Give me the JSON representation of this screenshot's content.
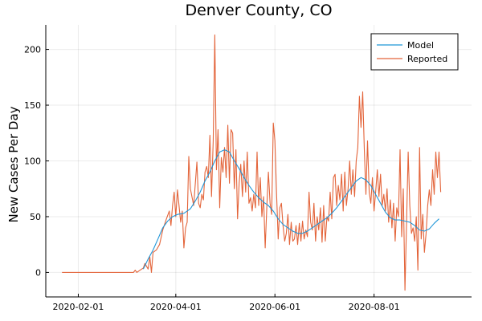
{
  "chart_data": {
    "type": "line",
    "title": "Denver County, CO",
    "xlabel": "",
    "ylabel": "New Cases Per Day",
    "x_ticks": [
      "2020-02-01",
      "2020-04-01",
      "2020-06-01",
      "2020-08-01"
    ],
    "y_ticks": [
      0,
      50,
      100,
      150,
      200
    ],
    "xlim": [
      "2020-01-12",
      "2020-09-30"
    ],
    "ylim": [
      -22,
      222
    ],
    "grid": true,
    "legend_position": "top-right",
    "colors": {
      "Model": "#1f96d8",
      "Reported": "#e3643a"
    },
    "series": [
      {
        "name": "Model",
        "points": [
          [
            "2020-03-12",
            3
          ],
          [
            "2020-03-15",
            12
          ],
          [
            "2020-03-18",
            20
          ],
          [
            "2020-03-21",
            30
          ],
          [
            "2020-03-24",
            40
          ],
          [
            "2020-03-27",
            46
          ],
          [
            "2020-03-30",
            50
          ],
          [
            "2020-04-02",
            52
          ],
          [
            "2020-04-06",
            53
          ],
          [
            "2020-04-10",
            57
          ],
          [
            "2020-04-13",
            64
          ],
          [
            "2020-04-16",
            72
          ],
          [
            "2020-04-19",
            82
          ],
          [
            "2020-04-22",
            90
          ],
          [
            "2020-04-25",
            100
          ],
          [
            "2020-04-28",
            108
          ],
          [
            "2020-05-01",
            110
          ],
          [
            "2020-05-04",
            108
          ],
          [
            "2020-05-07",
            100
          ],
          [
            "2020-05-10",
            93
          ],
          [
            "2020-05-13",
            85
          ],
          [
            "2020-05-16",
            78
          ],
          [
            "2020-05-19",
            72
          ],
          [
            "2020-05-22",
            67
          ],
          [
            "2020-05-25",
            63
          ],
          [
            "2020-05-28",
            60
          ],
          [
            "2020-05-31",
            55
          ],
          [
            "2020-06-03",
            48
          ],
          [
            "2020-06-06",
            43
          ],
          [
            "2020-06-09",
            40
          ],
          [
            "2020-06-12",
            37
          ],
          [
            "2020-06-15",
            35
          ],
          [
            "2020-06-18",
            35
          ],
          [
            "2020-06-21",
            37
          ],
          [
            "2020-06-24",
            40
          ],
          [
            "2020-06-27",
            43
          ],
          [
            "2020-06-30",
            46
          ],
          [
            "2020-07-03",
            49
          ],
          [
            "2020-07-06",
            53
          ],
          [
            "2020-07-09",
            58
          ],
          [
            "2020-07-12",
            64
          ],
          [
            "2020-07-15",
            70
          ],
          [
            "2020-07-18",
            76
          ],
          [
            "2020-07-21",
            82
          ],
          [
            "2020-07-24",
            85
          ],
          [
            "2020-07-27",
            83
          ],
          [
            "2020-07-30",
            78
          ],
          [
            "2020-08-02",
            70
          ],
          [
            "2020-08-05",
            62
          ],
          [
            "2020-08-08",
            54
          ],
          [
            "2020-08-11",
            49
          ],
          [
            "2020-08-14",
            47
          ],
          [
            "2020-08-17",
            47
          ],
          [
            "2020-08-20",
            46
          ],
          [
            "2020-08-23",
            45
          ],
          [
            "2020-08-26",
            42
          ],
          [
            "2020-08-29",
            38
          ],
          [
            "2020-09-01",
            37
          ],
          [
            "2020-09-04",
            39
          ],
          [
            "2020-09-07",
            44
          ],
          [
            "2020-09-10",
            48
          ]
        ]
      },
      {
        "name": "Reported",
        "points": [
          [
            "2020-01-22",
            0
          ],
          [
            "2020-03-06",
            0
          ],
          [
            "2020-03-07",
            2
          ],
          [
            "2020-03-08",
            0
          ],
          [
            "2020-03-10",
            2
          ],
          [
            "2020-03-12",
            4
          ],
          [
            "2020-03-13",
            8
          ],
          [
            "2020-03-15",
            3
          ],
          [
            "2020-03-16",
            14
          ],
          [
            "2020-03-17",
            0
          ],
          [
            "2020-03-18",
            18
          ],
          [
            "2020-03-20",
            20
          ],
          [
            "2020-03-22",
            25
          ],
          [
            "2020-03-24",
            38
          ],
          [
            "2020-03-26",
            47
          ],
          [
            "2020-03-28",
            55
          ],
          [
            "2020-03-29",
            42
          ],
          [
            "2020-03-30",
            60
          ],
          [
            "2020-03-31",
            72
          ],
          [
            "2020-04-01",
            50
          ],
          [
            "2020-04-02",
            74
          ],
          [
            "2020-04-04",
            45
          ],
          [
            "2020-04-05",
            55
          ],
          [
            "2020-04-06",
            22
          ],
          [
            "2020-04-07",
            40
          ],
          [
            "2020-04-08",
            45
          ],
          [
            "2020-04-09",
            104
          ],
          [
            "2020-04-10",
            75
          ],
          [
            "2020-04-12",
            60
          ],
          [
            "2020-04-14",
            99
          ],
          [
            "2020-04-15",
            62
          ],
          [
            "2020-04-16",
            58
          ],
          [
            "2020-04-17",
            70
          ],
          [
            "2020-04-18",
            65
          ],
          [
            "2020-04-19",
            90
          ],
          [
            "2020-04-20",
            95
          ],
          [
            "2020-04-21",
            85
          ],
          [
            "2020-04-22",
            123
          ],
          [
            "2020-04-23",
            68
          ],
          [
            "2020-04-24",
            118
          ],
          [
            "2020-04-25",
            213
          ],
          [
            "2020-04-26",
            92
          ],
          [
            "2020-04-27",
            128
          ],
          [
            "2020-04-28",
            58
          ],
          [
            "2020-04-29",
            103
          ],
          [
            "2020-04-30",
            90
          ],
          [
            "2020-05-01",
            112
          ],
          [
            "2020-05-02",
            85
          ],
          [
            "2020-05-03",
            132
          ],
          [
            "2020-05-04",
            80
          ],
          [
            "2020-05-05",
            128
          ],
          [
            "2020-05-06",
            125
          ],
          [
            "2020-05-07",
            75
          ],
          [
            "2020-05-08",
            110
          ],
          [
            "2020-05-09",
            48
          ],
          [
            "2020-05-10",
            80
          ],
          [
            "2020-05-11",
            97
          ],
          [
            "2020-05-12",
            68
          ],
          [
            "2020-05-13",
            100
          ],
          [
            "2020-05-14",
            72
          ],
          [
            "2020-05-15",
            108
          ],
          [
            "2020-05-16",
            62
          ],
          [
            "2020-05-17",
            67
          ],
          [
            "2020-05-18",
            55
          ],
          [
            "2020-05-19",
            70
          ],
          [
            "2020-05-20",
            58
          ],
          [
            "2020-05-21",
            108
          ],
          [
            "2020-05-22",
            60
          ],
          [
            "2020-05-23",
            85
          ],
          [
            "2020-05-24",
            50
          ],
          [
            "2020-05-25",
            68
          ],
          [
            "2020-05-26",
            22
          ],
          [
            "2020-05-27",
            58
          ],
          [
            "2020-05-28",
            90
          ],
          [
            "2020-05-29",
            62
          ],
          [
            "2020-05-30",
            52
          ],
          [
            "2020-05-31",
            134
          ],
          [
            "2020-06-01",
            118
          ],
          [
            "2020-06-02",
            70
          ],
          [
            "2020-06-03",
            30
          ],
          [
            "2020-06-04",
            58
          ],
          [
            "2020-06-05",
            62
          ],
          [
            "2020-06-06",
            42
          ],
          [
            "2020-06-07",
            28
          ],
          [
            "2020-06-08",
            35
          ],
          [
            "2020-06-09",
            52
          ],
          [
            "2020-06-10",
            25
          ],
          [
            "2020-06-11",
            45
          ],
          [
            "2020-06-12",
            28
          ],
          [
            "2020-06-13",
            30
          ],
          [
            "2020-06-14",
            42
          ],
          [
            "2020-06-15",
            25
          ],
          [
            "2020-06-16",
            44
          ],
          [
            "2020-06-17",
            28
          ],
          [
            "2020-06-18",
            46
          ],
          [
            "2020-06-19",
            30
          ],
          [
            "2020-06-20",
            38
          ],
          [
            "2020-06-21",
            32
          ],
          [
            "2020-06-22",
            72
          ],
          [
            "2020-06-23",
            45
          ],
          [
            "2020-06-24",
            38
          ],
          [
            "2020-06-25",
            62
          ],
          [
            "2020-06-26",
            28
          ],
          [
            "2020-06-27",
            50
          ],
          [
            "2020-06-28",
            38
          ],
          [
            "2020-06-29",
            58
          ],
          [
            "2020-06-30",
            27
          ],
          [
            "2020-07-01",
            60
          ],
          [
            "2020-07-02",
            28
          ],
          [
            "2020-07-03",
            50
          ],
          [
            "2020-07-04",
            46
          ],
          [
            "2020-07-05",
            72
          ],
          [
            "2020-07-06",
            48
          ],
          [
            "2020-07-07",
            85
          ],
          [
            "2020-07-08",
            88
          ],
          [
            "2020-07-09",
            60
          ],
          [
            "2020-07-10",
            78
          ],
          [
            "2020-07-11",
            65
          ],
          [
            "2020-07-12",
            88
          ],
          [
            "2020-07-13",
            55
          ],
          [
            "2020-07-14",
            90
          ],
          [
            "2020-07-15",
            60
          ],
          [
            "2020-07-16",
            75
          ],
          [
            "2020-07-17",
            100
          ],
          [
            "2020-07-18",
            70
          ],
          [
            "2020-07-19",
            92
          ],
          [
            "2020-07-20",
            68
          ],
          [
            "2020-07-21",
            100
          ],
          [
            "2020-07-22",
            112
          ],
          [
            "2020-07-23",
            158
          ],
          [
            "2020-07-24",
            130
          ],
          [
            "2020-07-25",
            162
          ],
          [
            "2020-07-26",
            110
          ],
          [
            "2020-07-27",
            70
          ],
          [
            "2020-07-28",
            118
          ],
          [
            "2020-07-29",
            72
          ],
          [
            "2020-07-30",
            62
          ],
          [
            "2020-07-31",
            85
          ],
          [
            "2020-08-01",
            55
          ],
          [
            "2020-08-02",
            72
          ],
          [
            "2020-08-03",
            92
          ],
          [
            "2020-08-04",
            68
          ],
          [
            "2020-08-05",
            88
          ],
          [
            "2020-08-06",
            60
          ],
          [
            "2020-08-07",
            70
          ],
          [
            "2020-08-08",
            55
          ],
          [
            "2020-08-09",
            75
          ],
          [
            "2020-08-10",
            45
          ],
          [
            "2020-08-11",
            65
          ],
          [
            "2020-08-12",
            40
          ],
          [
            "2020-08-13",
            62
          ],
          [
            "2020-08-14",
            28
          ],
          [
            "2020-08-15",
            58
          ],
          [
            "2020-08-16",
            50
          ],
          [
            "2020-08-17",
            110
          ],
          [
            "2020-08-18",
            32
          ],
          [
            "2020-08-19",
            75
          ],
          [
            "2020-08-20",
            -16
          ],
          [
            "2020-08-21",
            45
          ],
          [
            "2020-08-22",
            108
          ],
          [
            "2020-08-23",
            60
          ],
          [
            "2020-08-24",
            35
          ],
          [
            "2020-08-25",
            40
          ],
          [
            "2020-08-26",
            28
          ],
          [
            "2020-08-27",
            50
          ],
          [
            "2020-08-28",
            2
          ],
          [
            "2020-08-29",
            112
          ],
          [
            "2020-08-30",
            30
          ],
          [
            "2020-08-31",
            52
          ],
          [
            "2020-09-01",
            18
          ],
          [
            "2020-09-02",
            35
          ],
          [
            "2020-09-03",
            60
          ],
          [
            "2020-09-04",
            74
          ],
          [
            "2020-09-05",
            60
          ],
          [
            "2020-09-06",
            92
          ],
          [
            "2020-09-07",
            70
          ],
          [
            "2020-09-08",
            108
          ],
          [
            "2020-09-09",
            85
          ],
          [
            "2020-09-10",
            108
          ],
          [
            "2020-09-11",
            72
          ]
        ]
      }
    ]
  }
}
